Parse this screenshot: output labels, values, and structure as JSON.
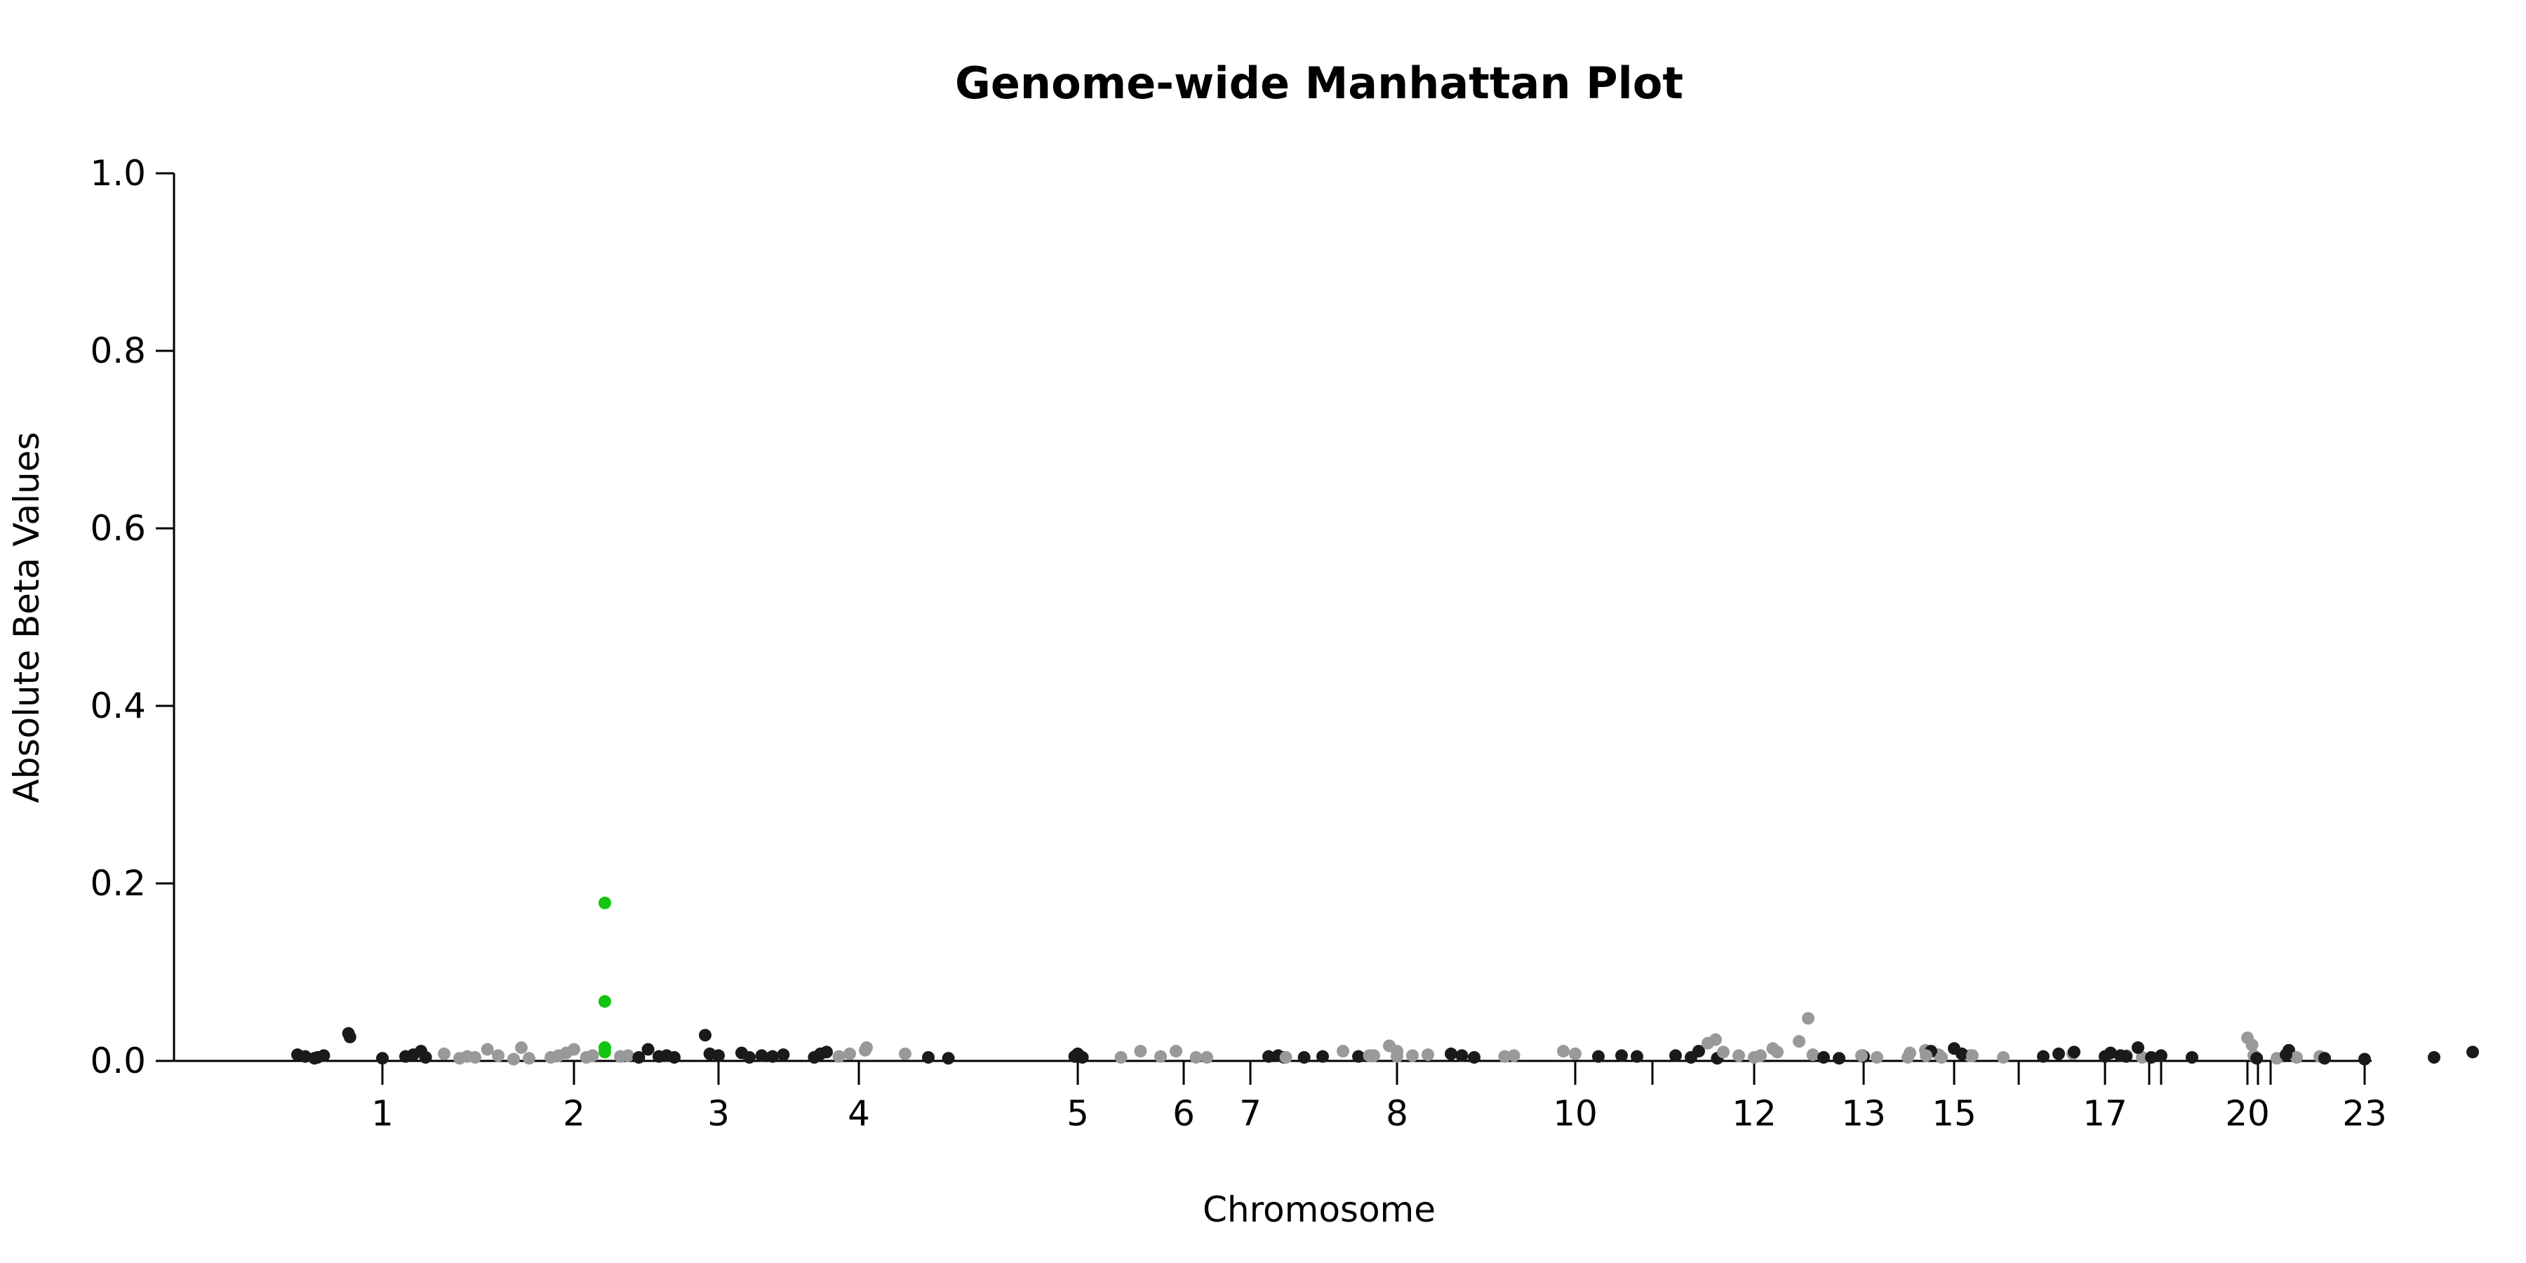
{
  "chart_data": {
    "type": "scatter",
    "title": "Genome-wide Manhattan Plot",
    "xlabel": "Chromosome",
    "ylabel": "Absolute Beta Values",
    "ylim": [
      0,
      1
    ],
    "yticks": [
      "0.0",
      "0.2",
      "0.4",
      "0.6",
      "0.8",
      "1.0"
    ],
    "xticks": [
      "1",
      "2",
      "3",
      "4",
      "5",
      "6",
      "7",
      "8",
      "10",
      "12",
      "13",
      "15",
      "17",
      "20",
      "23"
    ],
    "unlabeled_ticks": [
      "11",
      "16",
      "18",
      "19",
      "21",
      "22"
    ],
    "grid": false,
    "legend": "none",
    "colors": {
      "dark": "#1a1a1a",
      "light": "#999999",
      "highlight": "#11c511"
    },
    "points": [
      {
        "chr": "pre",
        "pos": -0.55,
        "y": 0.007,
        "c": "dark"
      },
      {
        "chr": "pre",
        "pos": -0.5,
        "y": 0.005,
        "c": "dark"
      },
      {
        "chr": "pre",
        "pos": -0.44,
        "y": 0.003,
        "c": "dark"
      },
      {
        "chr": "pre",
        "pos": -0.42,
        "y": 0.004,
        "c": "dark"
      },
      {
        "chr": "pre",
        "pos": -0.38,
        "y": 0.006,
        "c": "dark"
      },
      {
        "chr": "pre",
        "pos": -0.22,
        "y": 0.031,
        "c": "dark"
      },
      {
        "chr": "pre",
        "pos": -0.21,
        "y": 0.027,
        "c": "dark"
      },
      {
        "chr": "1",
        "pos": 0.0,
        "y": 0.003,
        "c": "dark"
      },
      {
        "chr": "1",
        "pos": 0.15,
        "y": 0.005,
        "c": "dark"
      },
      {
        "chr": "1",
        "pos": 0.2,
        "y": 0.007,
        "c": "dark"
      },
      {
        "chr": "1",
        "pos": 0.25,
        "y": 0.011,
        "c": "dark"
      },
      {
        "chr": "1",
        "pos": 0.28,
        "y": 0.004,
        "c": "dark"
      },
      {
        "chr": "1",
        "pos": 0.4,
        "y": 0.008,
        "c": "light"
      },
      {
        "chr": "1",
        "pos": 0.5,
        "y": 0.003,
        "c": "light"
      },
      {
        "chr": "1",
        "pos": 0.55,
        "y": 0.005,
        "c": "light"
      },
      {
        "chr": "1",
        "pos": 0.6,
        "y": 0.004,
        "c": "light"
      },
      {
        "chr": "1",
        "pos": 0.68,
        "y": 0.013,
        "c": "light"
      },
      {
        "chr": "1",
        "pos": 0.75,
        "y": 0.006,
        "c": "light"
      },
      {
        "chr": "1",
        "pos": 0.85,
        "y": 0.002,
        "c": "light"
      },
      {
        "chr": "1",
        "pos": 0.9,
        "y": 0.015,
        "c": "light"
      },
      {
        "chr": "1",
        "pos": 0.95,
        "y": 0.003,
        "c": "light"
      },
      {
        "chr": "2",
        "pos": -0.15,
        "y": 0.004,
        "c": "light"
      },
      {
        "chr": "2",
        "pos": -0.1,
        "y": 0.006,
        "c": "light"
      },
      {
        "chr": "2",
        "pos": -0.05,
        "y": 0.009,
        "c": "light"
      },
      {
        "chr": "2",
        "pos": 0.0,
        "y": 0.013,
        "c": "light"
      },
      {
        "chr": "2",
        "pos": 0.08,
        "y": 0.004,
        "c": "light"
      },
      {
        "chr": "2",
        "pos": 0.12,
        "y": 0.006,
        "c": "light"
      },
      {
        "chr": "2",
        "pos": 0.2,
        "y": 0.178,
        "c": "highlight"
      },
      {
        "chr": "2",
        "pos": 0.2,
        "y": 0.067,
        "c": "highlight"
      },
      {
        "chr": "2",
        "pos": 0.2,
        "y": 0.015,
        "c": "highlight"
      },
      {
        "chr": "2",
        "pos": 0.2,
        "y": 0.01,
        "c": "highlight"
      },
      {
        "chr": "2",
        "pos": 0.3,
        "y": 0.005,
        "c": "light"
      },
      {
        "chr": "2",
        "pos": 0.35,
        "y": 0.006,
        "c": "light"
      },
      {
        "chr": "2",
        "pos": 0.42,
        "y": 0.004,
        "c": "dark"
      },
      {
        "chr": "2",
        "pos": 0.48,
        "y": 0.013,
        "c": "dark"
      },
      {
        "chr": "2",
        "pos": 0.55,
        "y": 0.005,
        "c": "dark"
      },
      {
        "chr": "2",
        "pos": 0.6,
        "y": 0.006,
        "c": "dark"
      },
      {
        "chr": "2",
        "pos": 0.65,
        "y": 0.004,
        "c": "dark"
      },
      {
        "chr": "2",
        "pos": 0.85,
        "y": 0.029,
        "c": "dark"
      },
      {
        "chr": "2",
        "pos": 0.88,
        "y": 0.008,
        "c": "dark"
      },
      {
        "chr": "3",
        "pos": 0.0,
        "y": 0.006,
        "c": "dark"
      },
      {
        "chr": "3",
        "pos": 0.15,
        "y": 0.009,
        "c": "dark"
      },
      {
        "chr": "3",
        "pos": 0.2,
        "y": 0.004,
        "c": "dark"
      },
      {
        "chr": "3",
        "pos": 0.28,
        "y": 0.006,
        "c": "dark"
      },
      {
        "chr": "3",
        "pos": 0.35,
        "y": 0.005,
        "c": "dark"
      },
      {
        "chr": "3",
        "pos": 0.42,
        "y": 0.007,
        "c": "dark"
      },
      {
        "chr": "3",
        "pos": 0.62,
        "y": 0.004,
        "c": "dark"
      },
      {
        "chr": "3",
        "pos": 0.66,
        "y": 0.008,
        "c": "dark"
      },
      {
        "chr": "3",
        "pos": 0.7,
        "y": 0.01,
        "c": "dark"
      },
      {
        "chr": "3",
        "pos": 0.78,
        "y": 0.005,
        "c": "light"
      },
      {
        "chr": "3",
        "pos": 0.85,
        "y": 0.008,
        "c": "light"
      },
      {
        "chr": "3",
        "pos": 0.95,
        "y": 0.012,
        "c": "light"
      },
      {
        "chr": "4",
        "pos": 0.05,
        "y": 0.015,
        "c": "light"
      },
      {
        "chr": "4",
        "pos": 0.3,
        "y": 0.008,
        "c": "light"
      },
      {
        "chr": "4",
        "pos": 0.45,
        "y": 0.004,
        "c": "dark"
      },
      {
        "chr": "4",
        "pos": 0.58,
        "y": 0.003,
        "c": "dark"
      },
      {
        "chr": "5",
        "pos": -0.02,
        "y": 0.005,
        "c": "dark"
      },
      {
        "chr": "5",
        "pos": 0.0,
        "y": 0.008,
        "c": "dark"
      },
      {
        "chr": "5",
        "pos": 0.03,
        "y": 0.004,
        "c": "dark"
      },
      {
        "chr": "5",
        "pos": 0.28,
        "y": 0.004,
        "c": "light"
      },
      {
        "chr": "6",
        "pos": -0.28,
        "y": 0.011,
        "c": "light"
      },
      {
        "chr": "6",
        "pos": -0.15,
        "y": 0.005,
        "c": "light"
      },
      {
        "chr": "6",
        "pos": -0.05,
        "y": 0.011,
        "c": "light"
      },
      {
        "chr": "6",
        "pos": 0.08,
        "y": 0.004,
        "c": "light"
      },
      {
        "chr": "6",
        "pos": 0.15,
        "y": 0.004,
        "c": "light"
      },
      {
        "chr": "6",
        "pos": 0.55,
        "y": 0.005,
        "c": "dark"
      },
      {
        "chr": "6",
        "pos": 0.65,
        "y": 0.004,
        "c": "dark"
      },
      {
        "chr": "6",
        "pos": 0.78,
        "y": 0.004,
        "c": "dark"
      },
      {
        "chr": "6",
        "pos": 0.9,
        "y": 0.005,
        "c": "dark"
      },
      {
        "chr": "7",
        "pos": 0.18,
        "y": 0.006,
        "c": "dark"
      },
      {
        "chr": "7",
        "pos": 0.7,
        "y": 0.005,
        "c": "dark"
      },
      {
        "chr": "7",
        "pos": 0.8,
        "y": 0.006,
        "c": "light"
      },
      {
        "chr": "7",
        "pos": 0.9,
        "y": 0.017,
        "c": "light"
      },
      {
        "chr": "7",
        "pos": 0.95,
        "y": 0.005,
        "c": "light"
      },
      {
        "chr": "8",
        "pos": -0.72,
        "y": 0.004,
        "c": "light"
      },
      {
        "chr": "8",
        "pos": -0.35,
        "y": 0.011,
        "c": "light"
      },
      {
        "chr": "8",
        "pos": -0.18,
        "y": 0.006,
        "c": "light"
      },
      {
        "chr": "8",
        "pos": 0.0,
        "y": 0.011,
        "c": "light"
      },
      {
        "chr": "8",
        "pos": 0.1,
        "y": 0.006,
        "c": "light"
      },
      {
        "chr": "8",
        "pos": 0.2,
        "y": 0.007,
        "c": "light"
      },
      {
        "chr": "8",
        "pos": 0.35,
        "y": 0.008,
        "c": "dark"
      },
      {
        "chr": "8",
        "pos": 0.42,
        "y": 0.006,
        "c": "dark"
      },
      {
        "chr": "8",
        "pos": 0.5,
        "y": 0.004,
        "c": "dark"
      },
      {
        "chr": "9",
        "pos": 0.52,
        "y": 0.005,
        "c": "light"
      },
      {
        "chr": "9",
        "pos": 0.58,
        "y": 0.006,
        "c": "light"
      },
      {
        "chr": "9",
        "pos": 0.9,
        "y": 0.011,
        "c": "light"
      },
      {
        "chr": "10",
        "pos": 0.0,
        "y": 0.008,
        "c": "light"
      },
      {
        "chr": "10",
        "pos": 0.15,
        "y": 0.005,
        "c": "dark"
      },
      {
        "chr": "10",
        "pos": 0.3,
        "y": 0.006,
        "c": "dark"
      },
      {
        "chr": "10",
        "pos": 0.4,
        "y": 0.005,
        "c": "dark"
      },
      {
        "chr": "10",
        "pos": 0.8,
        "y": 0.011,
        "c": "dark"
      },
      {
        "chr": "11",
        "pos": 0.15,
        "y": 0.006,
        "c": "dark"
      },
      {
        "chr": "11",
        "pos": 0.25,
        "y": 0.004,
        "c": "dark"
      },
      {
        "chr": "11",
        "pos": 0.42,
        "y": 0.003,
        "c": "dark"
      },
      {
        "chr": "11",
        "pos": 0.7,
        "y": 0.006,
        "c": "light"
      },
      {
        "chr": "11",
        "pos": 0.78,
        "y": 0.014,
        "c": "light"
      },
      {
        "chr": "11",
        "pos": 0.95,
        "y": 0.022,
        "c": "light"
      },
      {
        "chr": "12",
        "pos": -0.3,
        "y": 0.02,
        "c": "light"
      },
      {
        "chr": "12",
        "pos": -0.25,
        "y": 0.024,
        "c": "light"
      },
      {
        "chr": "12",
        "pos": -0.2,
        "y": 0.01,
        "c": "light"
      },
      {
        "chr": "12",
        "pos": -0.1,
        "y": 0.006,
        "c": "light"
      },
      {
        "chr": "12",
        "pos": 0.0,
        "y": 0.004,
        "c": "light"
      },
      {
        "chr": "12",
        "pos": 0.15,
        "y": 0.01,
        "c": "light"
      },
      {
        "chr": "12",
        "pos": 0.35,
        "y": 0.048,
        "c": "light"
      },
      {
        "chr": "12",
        "pos": 0.38,
        "y": 0.007,
        "c": "light"
      },
      {
        "chr": "12",
        "pos": 0.45,
        "y": 0.004,
        "c": "dark"
      },
      {
        "chr": "12",
        "pos": 0.55,
        "y": 0.003,
        "c": "dark"
      },
      {
        "chr": "12",
        "pos": 0.7,
        "y": 0.006,
        "c": "dark"
      },
      {
        "chr": "13",
        "pos": 0.0,
        "y": 0.005,
        "c": "dark"
      },
      {
        "chr": "13",
        "pos": 0.3,
        "y": 0.009,
        "c": "light"
      },
      {
        "chr": "13",
        "pos": 0.4,
        "y": 0.012,
        "c": "light"
      },
      {
        "chr": "14",
        "pos": -0.6,
        "y": 0.006,
        "c": "light"
      },
      {
        "chr": "14",
        "pos": -0.5,
        "y": 0.004,
        "c": "light"
      },
      {
        "chr": "14",
        "pos": -0.3,
        "y": 0.004,
        "c": "light"
      },
      {
        "chr": "14",
        "pos": -0.1,
        "y": 0.007,
        "c": "light"
      },
      {
        "chr": "14",
        "pos": 0.1,
        "y": 0.006,
        "c": "light"
      },
      {
        "chr": "15",
        "pos": -0.15,
        "y": 0.011,
        "c": "dark"
      },
      {
        "chr": "15",
        "pos": 0.0,
        "y": 0.014,
        "c": "dark"
      },
      {
        "chr": "15",
        "pos": 0.05,
        "y": 0.008,
        "c": "dark"
      },
      {
        "chr": "16",
        "pos": -0.6,
        "y": 0.006,
        "c": "light"
      },
      {
        "chr": "16",
        "pos": -0.5,
        "y": 0.004,
        "c": "light"
      },
      {
        "chr": "16",
        "pos": -0.3,
        "y": 0.006,
        "c": "light"
      },
      {
        "chr": "16",
        "pos": -0.1,
        "y": 0.004,
        "c": "light"
      },
      {
        "chr": "16",
        "pos": 0.35,
        "y": 0.008,
        "c": "light"
      },
      {
        "chr": "16",
        "pos": 0.7,
        "y": 0.006,
        "c": "light"
      },
      {
        "chr": "16",
        "pos": 0.8,
        "y": 0.004,
        "c": "light"
      },
      {
        "chr": "17",
        "pos": -0.4,
        "y": 0.005,
        "c": "dark"
      },
      {
        "chr": "17",
        "pos": -0.3,
        "y": 0.008,
        "c": "dark"
      },
      {
        "chr": "17",
        "pos": -0.2,
        "y": 0.01,
        "c": "dark"
      },
      {
        "chr": "17",
        "pos": 0.0,
        "y": 0.005,
        "c": "dark"
      },
      {
        "chr": "17",
        "pos": 0.1,
        "y": 0.006,
        "c": "dark"
      },
      {
        "chr": "17",
        "pos": 0.3,
        "y": 0.004,
        "c": "dark"
      },
      {
        "chr": "18",
        "pos": -0.25,
        "y": 0.009,
        "c": "dark"
      },
      {
        "chr": "18",
        "pos": -0.15,
        "y": 0.005,
        "c": "dark"
      },
      {
        "chr": "19",
        "pos": -0.15,
        "y": 0.015,
        "c": "dark"
      },
      {
        "chr": "19",
        "pos": 0.0,
        "y": 0.006,
        "c": "dark"
      },
      {
        "chr": "19",
        "pos": 0.2,
        "y": 0.004,
        "c": "dark"
      },
      {
        "chr": "19",
        "pos": 0.6,
        "y": 0.006,
        "c": "light"
      },
      {
        "chr": "19",
        "pos": 0.75,
        "y": 0.003,
        "c": "light"
      },
      {
        "chr": "20",
        "pos": 0.0,
        "y": 0.026,
        "c": "light"
      },
      {
        "chr": "20",
        "pos": 0.03,
        "y": 0.018,
        "c": "light"
      },
      {
        "chr": "20",
        "pos": 0.06,
        "y": 0.003,
        "c": "dark"
      },
      {
        "chr": "21",
        "pos": 0.2,
        "y": 0.012,
        "c": "dark"
      },
      {
        "chr": "21",
        "pos": 0.25,
        "y": 0.004,
        "c": "light"
      },
      {
        "chr": "21",
        "pos": 0.4,
        "y": 0.005,
        "c": "light"
      },
      {
        "chr": "22",
        "pos": 0.1,
        "y": 0.007,
        "c": "dark"
      },
      {
        "chr": "22",
        "pos": 0.35,
        "y": 0.003,
        "c": "dark"
      },
      {
        "chr": "23",
        "pos": 0.0,
        "y": 0.002,
        "c": "dark"
      },
      {
        "chr": "23",
        "pos": 0.45,
        "y": 0.004,
        "c": "dark"
      },
      {
        "chr": "23",
        "pos": 0.7,
        "y": 0.01,
        "c": "dark"
      }
    ]
  }
}
